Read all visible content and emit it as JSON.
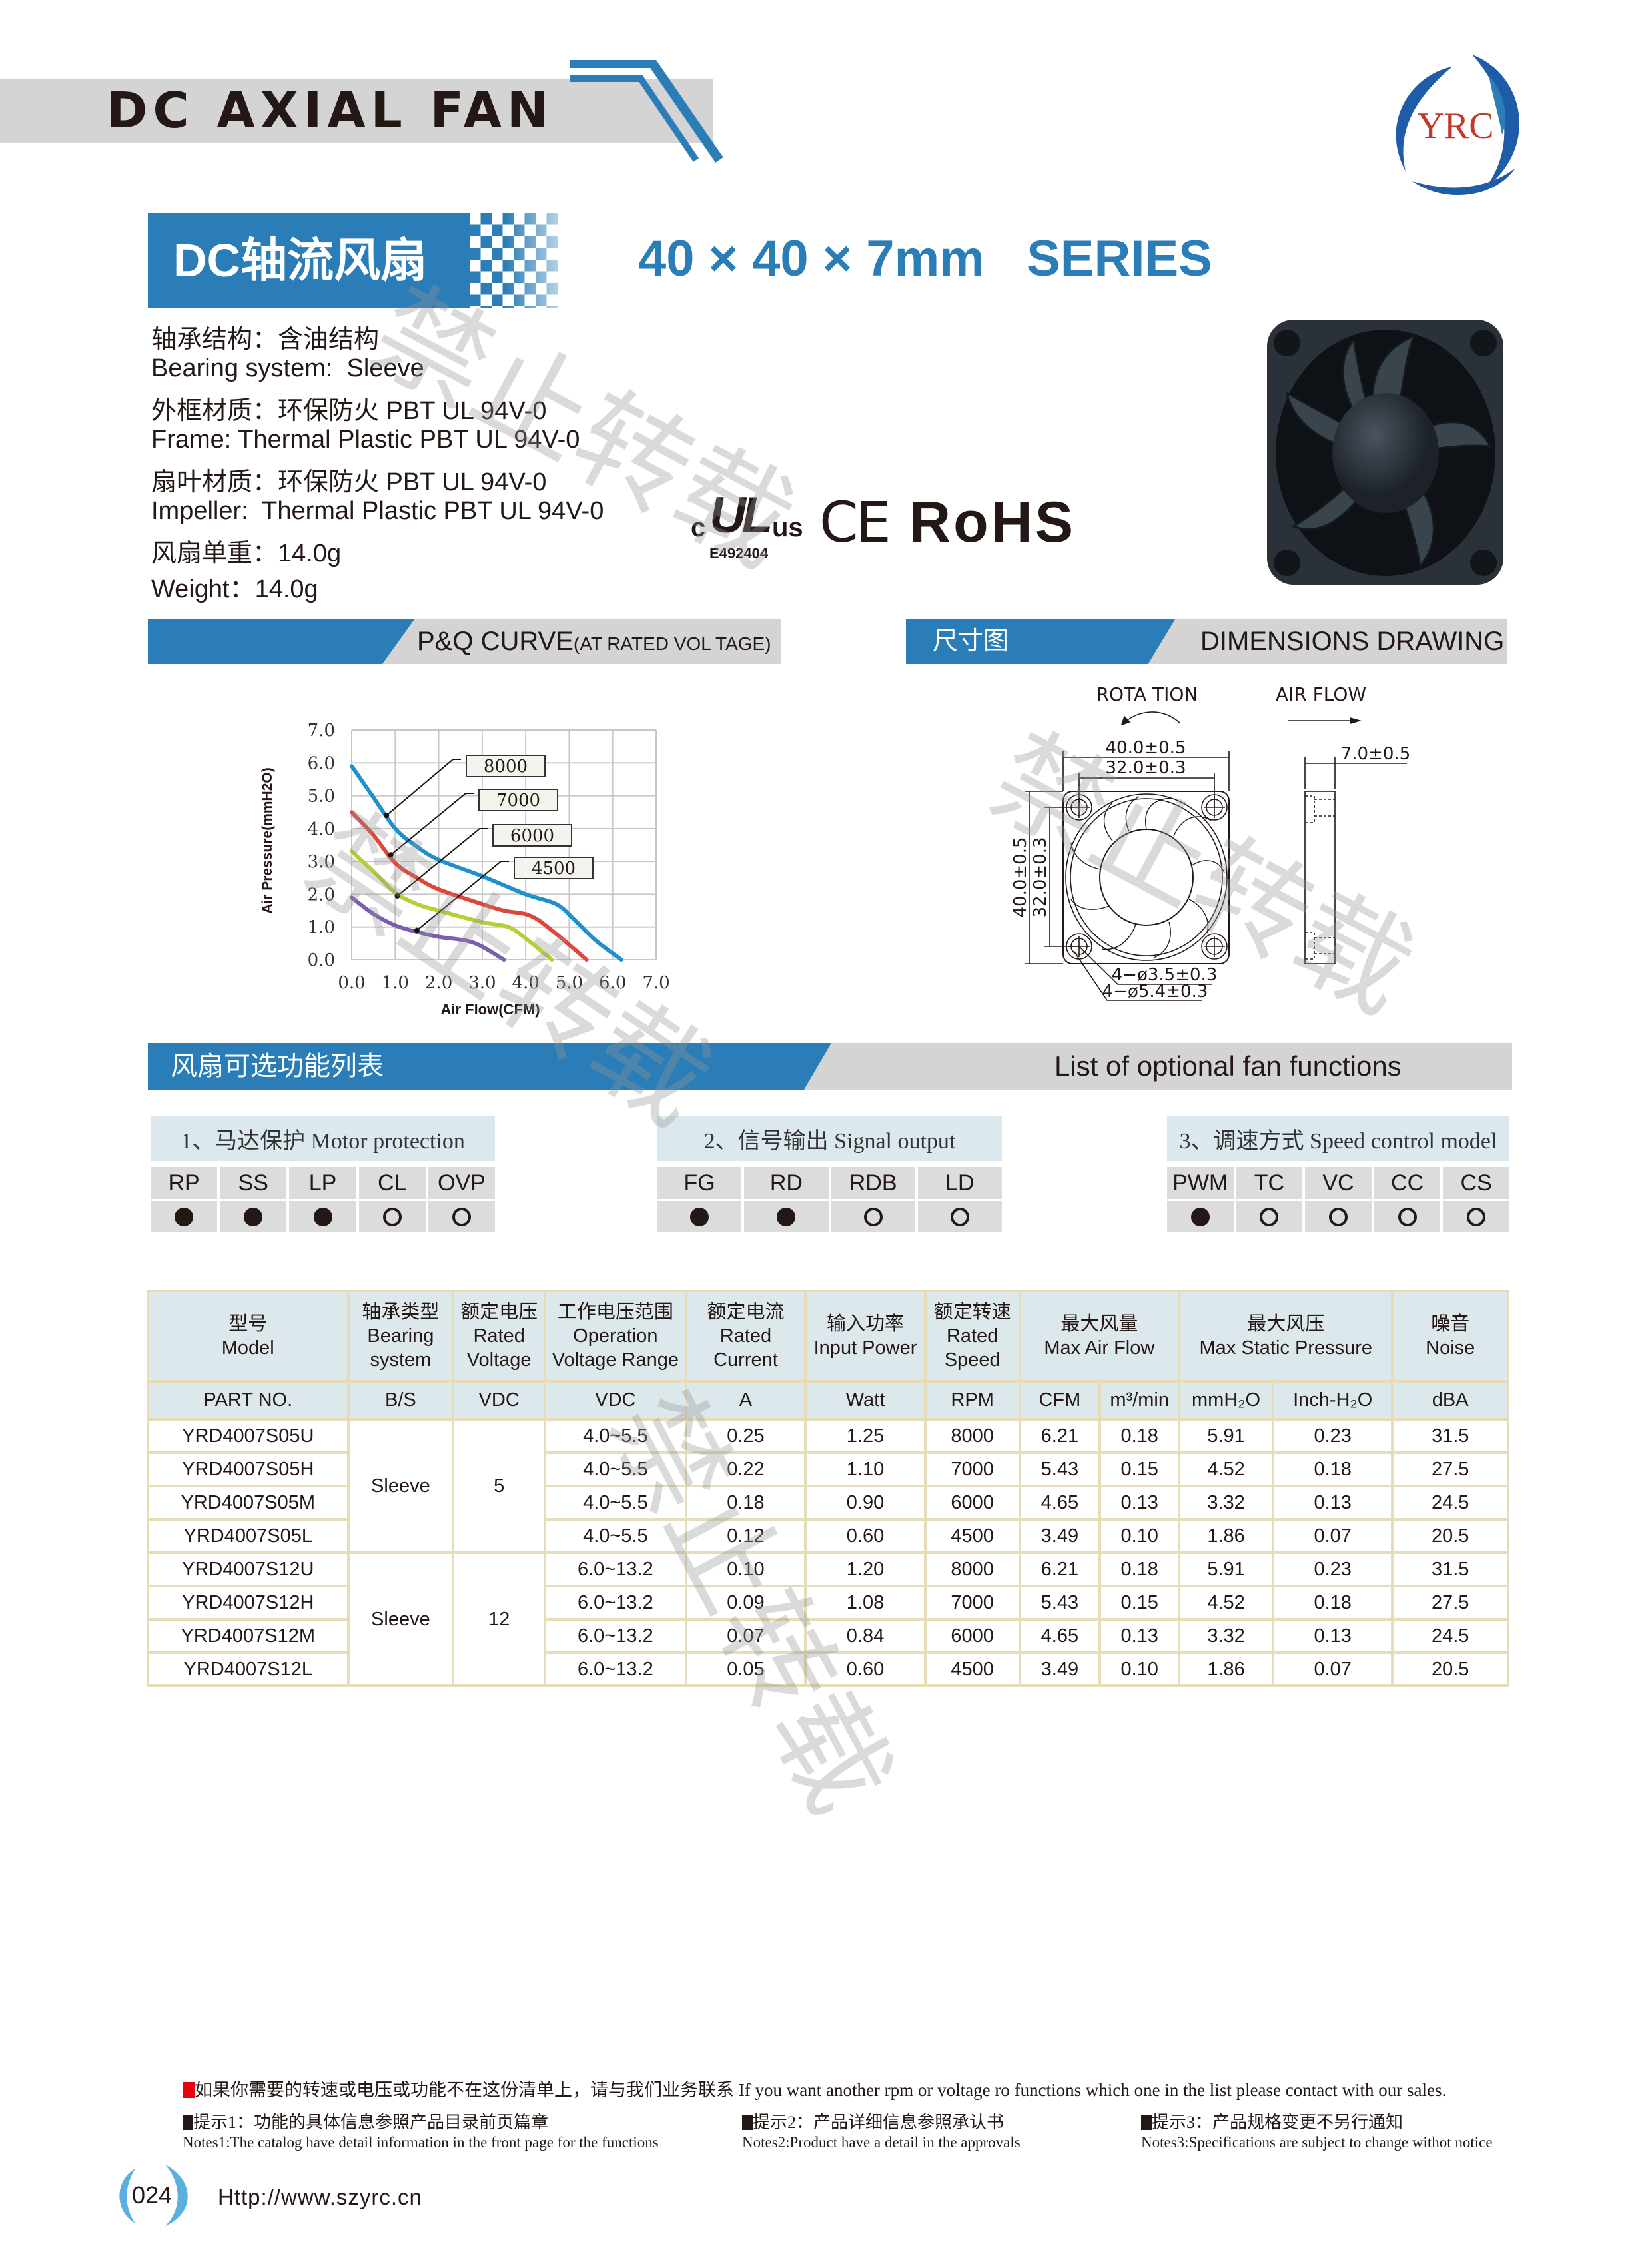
{
  "header": {
    "title": "DC AXIAL FAN",
    "logo_text": "YRC"
  },
  "product": {
    "cn_title": "DC轴流风扇",
    "size": "40 × 40 × 7mm",
    "series": "SERIES"
  },
  "specs": [
    "轴承结构：含油结构",
    "Bearing system:  Sleeve",
    "外框材质：环保防火 PBT UL 94V-0",
    "Frame: Thermal Plastic PBT UL 94V-0",
    "扇叶材质：环保防火 PBT UL 94V-0",
    "Impeller:  Thermal Plastic PBT UL 94V-0",
    "风扇单重：14.0g",
    "Weight：14.0g"
  ],
  "certs": {
    "ul_c": "c",
    "ul_mark": "UL",
    "ul_us": "us",
    "ul_no": "E492404",
    "ce": "CE",
    "rohs": "RoHS"
  },
  "pq_section": {
    "title": "P&Q CURVE",
    "subtitle": "(AT RATED VOL TAGE)"
  },
  "dim_section": {
    "cn": "尺寸图",
    "en": "DIMENSIONS  DRAWING"
  },
  "chart_data": {
    "type": "line",
    "xlabel": "Air Flow(CFM)",
    "ylabel": "Air Pressure(mmH2O)",
    "xlim": [
      0,
      7
    ],
    "ylim": [
      0,
      7
    ],
    "grid": true,
    "xticks": [
      "0.0",
      "1.0",
      "2.0",
      "3.0",
      "4.0",
      "5.0",
      "6.0",
      "7.0"
    ],
    "yticks": [
      "0.0",
      "1.0",
      "2.0",
      "3.0",
      "4.0",
      "5.0",
      "6.0",
      "7.0"
    ],
    "series": [
      {
        "name": "8000",
        "color": "#1f8fd0",
        "points": [
          [
            0,
            5.9
          ],
          [
            0.5,
            4.95
          ],
          [
            1,
            4.0
          ],
          [
            1.5,
            3.45
          ],
          [
            2,
            3.05
          ],
          [
            3,
            2.55
          ],
          [
            4,
            2.0
          ],
          [
            4.7,
            1.7
          ],
          [
            5.1,
            1.25
          ],
          [
            5.6,
            0.6
          ],
          [
            6.2,
            0
          ]
        ]
      },
      {
        "name": "7000",
        "color": "#e0453a",
        "points": [
          [
            0,
            4.5
          ],
          [
            0.5,
            3.8
          ],
          [
            1,
            2.95
          ],
          [
            1.5,
            2.5
          ],
          [
            2,
            2.15
          ],
          [
            3,
            1.7
          ],
          [
            3.5,
            1.5
          ],
          [
            4.1,
            1.35
          ],
          [
            4.6,
            0.9
          ],
          [
            5.4,
            0
          ]
        ]
      },
      {
        "name": "6000",
        "color": "#b6cf36",
        "points": [
          [
            0,
            3.3
          ],
          [
            0.5,
            2.7
          ],
          [
            1,
            2.05
          ],
          [
            1.5,
            1.7
          ],
          [
            2,
            1.5
          ],
          [
            3,
            1.15
          ],
          [
            3.6,
            1.0
          ],
          [
            4.0,
            0.65
          ],
          [
            4.6,
            0
          ]
        ]
      },
      {
        "name": "4500",
        "color": "#7a5fb0",
        "points": [
          [
            0,
            1.9
          ],
          [
            0.5,
            1.4
          ],
          [
            1,
            1.05
          ],
          [
            1.5,
            0.85
          ],
          [
            2,
            0.7
          ],
          [
            2.8,
            0.52
          ],
          [
            3.5,
            0
          ]
        ]
      }
    ]
  },
  "dimensions": {
    "rotation": "ROTA  TION",
    "air_flow": "AIR  FLOW",
    "width_outer": "40.0±0.5",
    "width_hole": "32.0±0.3",
    "height_outer": "40.0±0.5",
    "height_hole": "32.0±0.3",
    "depth": "7.0±0.5",
    "hole_small": "4−ø3.5±0.3",
    "hole_large": "4−ø5.4±0.3"
  },
  "functions": {
    "title_cn": "风扇可选功能列表",
    "title_en": "List of optional fan functions",
    "groups": [
      {
        "title": "1、马达保护 Motor protection",
        "codes": [
          "RP",
          "SS",
          "LP",
          "CL",
          "OVP"
        ],
        "available": [
          true,
          true,
          true,
          false,
          false
        ]
      },
      {
        "title": "2、信号输出 Signal output",
        "codes": [
          "FG",
          "RD",
          "RDB",
          "LD"
        ],
        "available": [
          true,
          true,
          false,
          false
        ]
      },
      {
        "title": "3、调速方式 Speed control model",
        "codes": [
          "PWM",
          "TC",
          "VC",
          "CC",
          "CS"
        ],
        "available": [
          true,
          false,
          false,
          false,
          false
        ]
      }
    ]
  },
  "table": {
    "headers": [
      [
        "型号",
        "Model"
      ],
      [
        "轴承类型",
        "Bearing",
        "system"
      ],
      [
        "额定电压",
        "Rated",
        "Voltage"
      ],
      [
        "工作电压范围",
        "Operation",
        "Voltage Range"
      ],
      [
        "额定电流",
        "Rated",
        "Current"
      ],
      [
        "输入功率",
        "Input Power"
      ],
      [
        "额定转速",
        "Rated",
        "Speed"
      ],
      [
        "最大风量",
        "Max Air Flow"
      ],
      [
        "最大风压",
        "Max Static Pressure"
      ],
      [
        "噪音",
        "Noise"
      ]
    ],
    "units": [
      "PART NO.",
      "B/S",
      "VDC",
      "VDC",
      "A",
      "Watt",
      "RPM",
      "CFM",
      "m³/min",
      "mmH₂O",
      "Inch-H₂O",
      "dBA"
    ],
    "groups": [
      {
        "bearing": "Sleeve",
        "voltage": "5",
        "rows": [
          [
            "YRD4007S05U",
            "4.0~5.5",
            "0.25",
            "1.25",
            "8000",
            "6.21",
            "0.18",
            "5.91",
            "0.23",
            "31.5"
          ],
          [
            "YRD4007S05H",
            "4.0~5.5",
            "0.22",
            "1.10",
            "7000",
            "5.43",
            "0.15",
            "4.52",
            "0.18",
            "27.5"
          ],
          [
            "YRD4007S05M",
            "4.0~5.5",
            "0.18",
            "0.90",
            "6000",
            "4.65",
            "0.13",
            "3.32",
            "0.13",
            "24.5"
          ],
          [
            "YRD4007S05L",
            "4.0~5.5",
            "0.12",
            "0.60",
            "4500",
            "3.49",
            "0.10",
            "1.86",
            "0.07",
            "20.5"
          ]
        ]
      },
      {
        "bearing": "Sleeve",
        "voltage": "12",
        "rows": [
          [
            "YRD4007S12U",
            "6.0~13.2",
            "0.10",
            "1.20",
            "8000",
            "6.21",
            "0.18",
            "5.91",
            "0.23",
            "31.5"
          ],
          [
            "YRD4007S12H",
            "6.0~13.2",
            "0.09",
            "1.08",
            "7000",
            "5.43",
            "0.15",
            "4.52",
            "0.18",
            "27.5"
          ],
          [
            "YRD4007S12M",
            "6.0~13.2",
            "0.07",
            "0.84",
            "6000",
            "4.65",
            "0.13",
            "3.32",
            "0.13",
            "24.5"
          ],
          [
            "YRD4007S12L",
            "6.0~13.2",
            "0.05",
            "0.60",
            "4500",
            "3.49",
            "0.10",
            "1.86",
            "0.07",
            "20.5"
          ]
        ]
      }
    ]
  },
  "footer": {
    "notice": "如果你需要的转速或电压或功能不在这份清单上，请与我们业务联系 If you want another rpm or voltage ro functions which one in the list please contact with our sales.",
    "notes": [
      {
        "cn": "提示1：功能的具体信息参照产品目录前页篇章",
        "en": "Notes1:The catalog have detail information in the front page for the functions"
      },
      {
        "cn": "提示2：产品详细信息参照承认书",
        "en": "Notes2:Product have a detail in the approvals"
      },
      {
        "cn": "提示3：产品规格变更不另行通知",
        "en": "Notes3:Specifications are subject to change withot notice"
      }
    ],
    "page": "024",
    "url": "Http://www.szyrc.cn"
  },
  "watermark": "禁止转载",
  "colors": {
    "brand_blue": "#2a7db6",
    "header_gray": "#d4d4d4",
    "table_border": "#e6dcb8",
    "table_header": "#dce8ec",
    "notice_red": "#e60012"
  }
}
